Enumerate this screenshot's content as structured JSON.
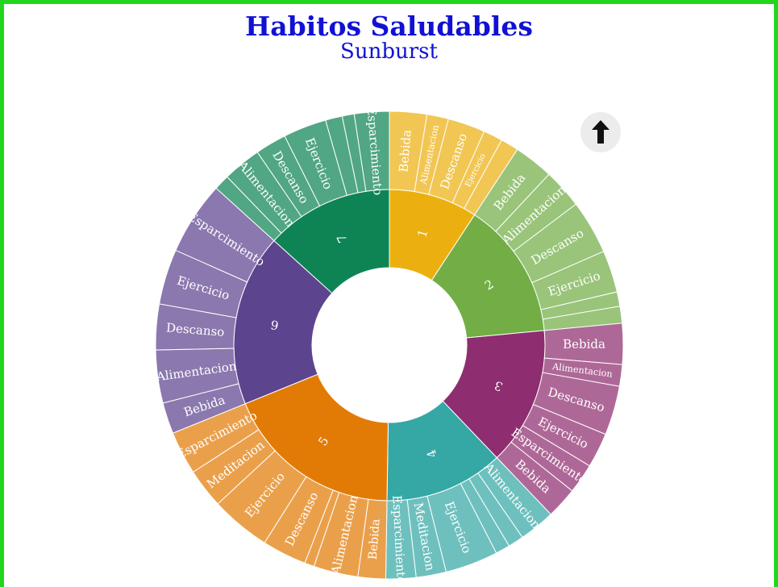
{
  "chart_data": {
    "type": "sunburst",
    "title": "Habitos Saludables",
    "subtitle": "Sunburst",
    "groups": [
      {
        "name": "1",
        "color": "#ebb010",
        "children": [
          {
            "name": "Bebida",
            "value": 3.1
          },
          {
            "name": "Alimentacion",
            "value": 1.8
          },
          {
            "name": "Descanso",
            "value": 3.1
          },
          {
            "name": "Ejercicio",
            "value": 1.6
          },
          {
            "name": "",
            "value": 1.5
          }
        ]
      },
      {
        "name": "2",
        "color": "#72ad46",
        "children": [
          {
            "name": "Bebida",
            "value": 3.3
          },
          {
            "name": "Alimentacion",
            "value": 3.3
          },
          {
            "name": "Descanso",
            "value": 4.5
          },
          {
            "name": "Ejercicio",
            "value": 3.5
          },
          {
            "name": "",
            "value": 1.2
          },
          {
            "name": "",
            "value": 1.4
          }
        ]
      },
      {
        "name": "3",
        "color": "#8e2d6f",
        "children": [
          {
            "name": "Bebida",
            "value": 3.4
          },
          {
            "name": "Alimentacion",
            "value": 1.8
          },
          {
            "name": "Descanso",
            "value": 4.1
          },
          {
            "name": "Ejercicio",
            "value": 2.9
          },
          {
            "name": "Esparcimiento",
            "value": 2.5
          },
          {
            "name": "Bebida",
            "value": 2.6
          }
        ]
      },
      {
        "name": "4",
        "color": "#35a7a5",
        "children": [
          {
            "name": "Alimentacion",
            "value": 3.0
          },
          {
            "name": "",
            "value": 1.3
          },
          {
            "name": "",
            "value": 1.2
          },
          {
            "name": "Ejercicio",
            "value": 4.4
          },
          {
            "name": "Meditacion",
            "value": 2.5
          },
          {
            "name": "Esparcimiento",
            "value": 2.5
          }
        ]
      },
      {
        "name": "5",
        "color": "#e27b05",
        "children": [
          {
            "name": "Bebida",
            "value": 2.3
          },
          {
            "name": "Alimentacion",
            "value": 3.7
          },
          {
            "name": "",
            "value": 0.8
          },
          {
            "name": "Descanso",
            "value": 3.7
          },
          {
            "name": "Ejercicio",
            "value": 5.0
          },
          {
            "name": "Meditacion",
            "value": 3.3
          },
          {
            "name": "Esparcimiento",
            "value": 3.6
          }
        ]
      },
      {
        "name": "6",
        "color": "#5d448e",
        "children": [
          {
            "name": "Bebida",
            "value": 2.6
          },
          {
            "name": "Alimentacion",
            "value": 4.4
          },
          {
            "name": "Descanso",
            "value": 3.8
          },
          {
            "name": "Ejercicio",
            "value": 4.6
          },
          {
            "name": "Esparcimiento",
            "value": 6.1
          }
        ]
      },
      {
        "name": "7",
        "color": "#0e8454",
        "children": [
          {
            "name": "",
            "value": 1.3
          },
          {
            "name": "Alimentacion",
            "value": 3.2
          },
          {
            "name": "Descanso",
            "value": 2.6
          },
          {
            "name": "Ejercicio",
            "value": 3.6
          },
          {
            "name": "",
            "value": 1.4
          },
          {
            "name": "",
            "value": 1.0
          },
          {
            "name": "Esparcimiento",
            "value": 2.9
          }
        ]
      }
    ]
  },
  "controls": {
    "up_button_icon": "arrow-up-icon"
  }
}
